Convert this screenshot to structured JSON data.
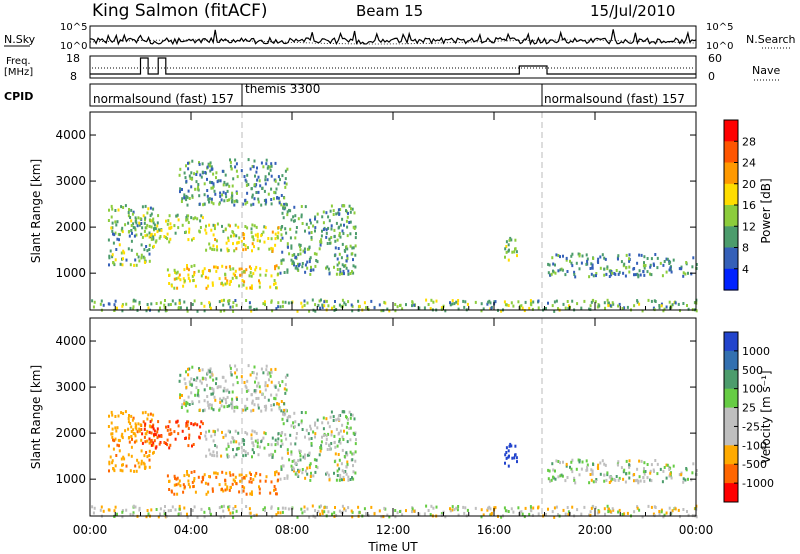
{
  "header": {
    "station": "King Salmon (fitACF)",
    "beam": "Beam 15",
    "date": "15/Jul/2010"
  },
  "noise_panel": {
    "left_label": "N.Sky",
    "right_label": "N.Search",
    "left_ticks": [
      "10^5",
      "10^0"
    ],
    "right_ticks": [
      "10^5",
      "10^0"
    ]
  },
  "freq_panel": {
    "left_label_1": "Freq.",
    "left_label_2": "[MHz]",
    "right_label": "Nave",
    "left_ticks": [
      "18",
      "8"
    ],
    "right_ticks": [
      "60",
      "0"
    ]
  },
  "cpid_panel": {
    "label": "CPID",
    "modes": [
      {
        "name": "normalsound (fast) 157",
        "start_hour": 0,
        "end_hour": 6
      },
      {
        "name": "themis 3300",
        "start_hour": 6,
        "end_hour": 18
      },
      {
        "name": "normalsound (fast) 157",
        "start_hour": 18,
        "end_hour": 24
      }
    ]
  },
  "time_axis": {
    "label": "Time UT",
    "ticks": [
      "00:00",
      "04:00",
      "08:00",
      "12:00",
      "16:00",
      "20:00",
      "00:00"
    ]
  },
  "power_colorbar": {
    "label": "Power [dB]",
    "ticks": [
      "28",
      "24",
      "20",
      "16",
      "12",
      "8",
      "4"
    ],
    "colors": [
      "#ff0000",
      "#ff5500",
      "#ff9900",
      "#ffdd00",
      "#8ccc3c",
      "#4c9c6c",
      "#3560b8",
      "#0022ff"
    ]
  },
  "velocity_colorbar": {
    "label": "Velocity [m s⁻¹]",
    "ticks": [
      "1000",
      "500",
      "100",
      "25",
      "-25",
      "-100",
      "-500",
      "-1000"
    ],
    "colors": [
      "#2244cc",
      "#3370b0",
      "#4c9c6c",
      "#66cc44",
      "#bfbfbf",
      "#bfbfbf",
      "#ffaa00",
      "#ff6600",
      "#ff0000"
    ]
  },
  "chart_data": [
    {
      "type": "heatmap",
      "title": "Power",
      "ylabel": "Slant Range [km]",
      "xlabel": "",
      "xlim": [
        0,
        24
      ],
      "ylim": [
        200,
        4500
      ],
      "yticks": [
        "1000",
        "2000",
        "3000",
        "4000"
      ],
      "colorbar": "Power [dB]",
      "echo_regions": [
        {
          "t0": 0.7,
          "t1": 2.5,
          "r0": 1200,
          "r1": 2500,
          "level": 10
        },
        {
          "t0": 2.0,
          "t1": 4.5,
          "r0": 1700,
          "r1": 2300,
          "level": 12
        },
        {
          "t0": 4.5,
          "t1": 7.5,
          "r0": 1500,
          "r1": 2100,
          "level": 14
        },
        {
          "t0": 3.0,
          "t1": 7.5,
          "r0": 700,
          "r1": 1200,
          "level": 16
        },
        {
          "t0": 3.5,
          "t1": 7.8,
          "r0": 2500,
          "r1": 3500,
          "level": 8
        },
        {
          "t0": 7.5,
          "t1": 10.5,
          "r0": 1000,
          "r1": 2500,
          "level": 8
        },
        {
          "t0": 16.2,
          "t1": 16.9,
          "r0": 1300,
          "r1": 1800,
          "level": 12
        },
        {
          "t0": 18.1,
          "t1": 24.0,
          "r0": 950,
          "r1": 1450,
          "level": 7
        },
        {
          "t0": 0.0,
          "t1": 24.0,
          "r0": 200,
          "r1": 450,
          "level": 10
        }
      ]
    },
    {
      "type": "heatmap",
      "title": "Velocity",
      "ylabel": "Slant Range [km]",
      "xlabel": "Time UT",
      "xlim": [
        0,
        24
      ],
      "ylim": [
        200,
        4500
      ],
      "yticks": [
        "1000",
        "2000",
        "3000",
        "4000"
      ],
      "colorbar": "Velocity [m s⁻¹]",
      "echo_regions": [
        {
          "t0": 0.7,
          "t1": 2.5,
          "r0": 1200,
          "r1": 2500,
          "level": -300
        },
        {
          "t0": 2.0,
          "t1": 4.5,
          "r0": 1700,
          "r1": 2300,
          "level": -600
        },
        {
          "t0": 4.5,
          "t1": 7.5,
          "r0": 1500,
          "r1": 2100,
          "level": 0
        },
        {
          "t0": 3.0,
          "t1": 7.5,
          "r0": 700,
          "r1": 1200,
          "level": -400
        },
        {
          "t0": 3.5,
          "t1": 7.8,
          "r0": 2500,
          "r1": 3500,
          "level": 0
        },
        {
          "t0": 7.5,
          "t1": 10.5,
          "r0": 1000,
          "r1": 2500,
          "level": 0
        },
        {
          "t0": 16.2,
          "t1": 16.9,
          "r0": 1300,
          "r1": 1800,
          "level": 600
        },
        {
          "t0": 18.1,
          "t1": 24.0,
          "r0": 950,
          "r1": 1450,
          "level": 0
        },
        {
          "t0": 0.0,
          "t1": 24.0,
          "r0": 200,
          "r1": 450,
          "level": -50
        }
      ]
    }
  ]
}
